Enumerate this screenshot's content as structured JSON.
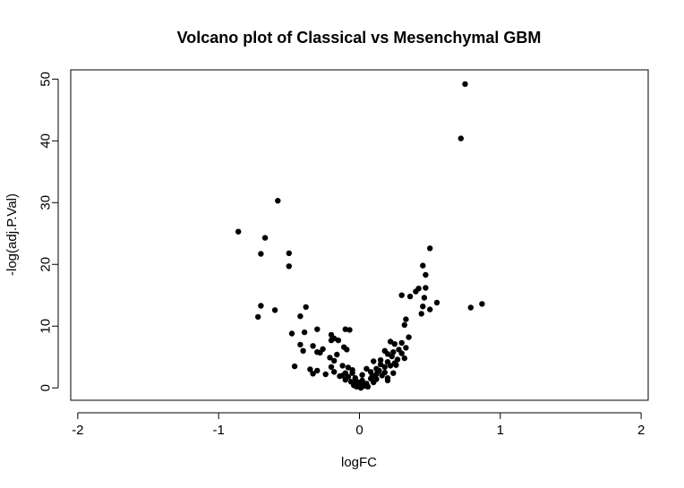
{
  "chart_data": {
    "type": "scatter",
    "title": "Volcano plot of Classical vs Mesenchymal GBM",
    "xlabel": "logFC",
    "ylabel": "-log(adj.P.Val)",
    "xlim": [
      -2.05,
      2.05
    ],
    "ylim": [
      -2,
      51.5
    ],
    "xticks": [
      -2,
      -1,
      0,
      1,
      2
    ],
    "yticks": [
      0,
      10,
      20,
      30,
      40,
      50
    ],
    "grid": false,
    "legend": "none",
    "point_color": "#000000",
    "points": [
      [
        0.75,
        49.2
      ],
      [
        0.72,
        40.4
      ],
      [
        -0.58,
        30.3
      ],
      [
        -0.86,
        25.3
      ],
      [
        -0.67,
        24.3
      ],
      [
        0.5,
        22.6
      ],
      [
        -0.5,
        21.8
      ],
      [
        -0.7,
        21.7
      ],
      [
        -0.5,
        19.7
      ],
      [
        0.45,
        19.8
      ],
      [
        0.47,
        18.3
      ],
      [
        0.47,
        16.2
      ],
      [
        0.4,
        15.6
      ],
      [
        0.42,
        16.1
      ],
      [
        0.3,
        15.0
      ],
      [
        0.36,
        14.8
      ],
      [
        0.46,
        14.6
      ],
      [
        0.55,
        13.8
      ],
      [
        0.45,
        13.2
      ],
      [
        0.5,
        12.7
      ],
      [
        0.44,
        12.0
      ],
      [
        0.87,
        13.6
      ],
      [
        0.79,
        13.0
      ],
      [
        -0.7,
        13.3
      ],
      [
        -0.72,
        11.5
      ],
      [
        -0.6,
        12.6
      ],
      [
        -0.38,
        13.1
      ],
      [
        -0.42,
        11.6
      ],
      [
        0.33,
        11.1
      ],
      [
        0.32,
        10.2
      ],
      [
        -0.1,
        9.5
      ],
      [
        -0.07,
        9.4
      ],
      [
        -0.3,
        9.5
      ],
      [
        -0.48,
        8.8
      ],
      [
        -0.39,
        9.0
      ],
      [
        -0.2,
        8.6
      ],
      [
        -0.18,
        8.0
      ],
      [
        -0.2,
        7.7
      ],
      [
        -0.15,
        7.7
      ],
      [
        0.22,
        7.5
      ],
      [
        0.25,
        7.1
      ],
      [
        0.3,
        7.3
      ],
      [
        -0.42,
        7.0
      ],
      [
        -0.33,
        6.8
      ],
      [
        -0.26,
        6.3
      ],
      [
        -0.11,
        6.6
      ],
      [
        -0.09,
        6.2
      ],
      [
        -0.3,
        5.8
      ],
      [
        -0.4,
        6.0
      ],
      [
        -0.16,
        5.4
      ],
      [
        0.18,
        6.0
      ],
      [
        0.2,
        5.5
      ],
      [
        0.23,
        5.1
      ],
      [
        0.3,
        5.6
      ],
      [
        0.32,
        4.8
      ],
      [
        -0.28,
        5.7
      ],
      [
        -0.21,
        4.9
      ],
      [
        -0.18,
        4.4
      ],
      [
        0.1,
        4.3
      ],
      [
        0.15,
        4.5
      ],
      [
        0.2,
        4.2
      ],
      [
        0.25,
        4.0
      ],
      [
        0.26,
        3.7
      ],
      [
        -0.46,
        3.5
      ],
      [
        -0.35,
        3.0
      ],
      [
        -0.2,
        3.4
      ],
      [
        -0.12,
        3.6
      ],
      [
        -0.08,
        3.3
      ],
      [
        -0.05,
        2.9
      ],
      [
        0.12,
        3.1
      ],
      [
        0.18,
        3.4
      ],
      [
        0.22,
        3.6
      ],
      [
        -0.3,
        2.8
      ],
      [
        -0.33,
        2.3
      ],
      [
        -0.24,
        2.2
      ],
      [
        -0.18,
        2.6
      ],
      [
        -0.12,
        2.0
      ],
      [
        -0.08,
        1.8
      ],
      [
        -0.05,
        2.4
      ],
      [
        -0.03,
        1.6
      ],
      [
        0.05,
        3.1
      ],
      [
        0.12,
        2.2
      ],
      [
        0.16,
        2.0
      ],
      [
        0.2,
        1.6
      ],
      [
        0.24,
        2.4
      ],
      [
        0.2,
        1.2
      ],
      [
        -0.1,
        1.3
      ],
      [
        -0.06,
        1.0
      ],
      [
        -0.03,
        0.8
      ],
      [
        0.0,
        0.5
      ],
      [
        0.02,
        1.2
      ],
      [
        0.05,
        0.7
      ],
      [
        0.08,
        1.5
      ],
      [
        0.1,
        0.9
      ],
      [
        0.04,
        0.3
      ],
      [
        -0.02,
        0.2
      ],
      [
        0.01,
        0.0
      ],
      [
        -0.04,
        0.4
      ],
      [
        0.06,
        0.2
      ],
      [
        0.12,
        1.4
      ],
      [
        0.14,
        2.8
      ],
      [
        -0.1,
        2.4
      ],
      [
        0.02,
        2.1
      ],
      [
        0.09,
        1.9
      ],
      [
        0.27,
        4.6
      ],
      [
        0.28,
        6.2
      ],
      [
        0.35,
        8.2
      ],
      [
        0.33,
        6.5
      ],
      [
        0.24,
        5.8
      ],
      [
        0.08,
        2.6
      ],
      [
        -0.14,
        1.9
      ],
      [
        -0.01,
        0.9
      ],
      [
        0.03,
        0.6
      ],
      [
        0.15,
        3.8
      ],
      [
        0.18,
        2.5
      ]
    ]
  }
}
